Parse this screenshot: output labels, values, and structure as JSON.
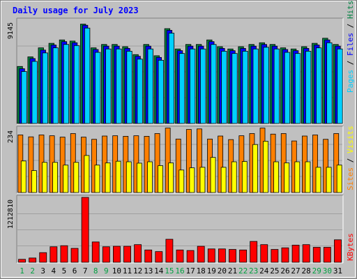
{
  "chart_data": {
    "type": "bar",
    "title": "Daily usage for July 2023",
    "categories": [
      "1",
      "2",
      "3",
      "4",
      "5",
      "6",
      "7",
      "8",
      "9",
      "10",
      "11",
      "12",
      "13",
      "14",
      "15",
      "16",
      "17",
      "18",
      "19",
      "20",
      "21",
      "22",
      "23",
      "24",
      "25",
      "26",
      "27",
      "28",
      "29",
      "30",
      "31"
    ],
    "weekend_days": [
      "1",
      "2",
      "8",
      "9",
      "15",
      "16",
      "22",
      "23",
      "29",
      "30"
    ],
    "panels": [
      {
        "id": "top",
        "max_label": "9145",
        "ylim": [
          0,
          9145
        ],
        "series": [
          {
            "name": "Hits",
            "color": "#008040",
            "values": [
              5050,
              5900,
              6700,
              7100,
              7400,
              7300,
              8800,
              6700,
              7000,
              7000,
              6800,
              6100,
              7000,
              6000,
              8400,
              6600,
              7000,
              7000,
              7400,
              6800,
              6600,
              6800,
              7000,
              7150,
              7000,
              6700,
              6600,
              6800,
              7100,
              7550,
              7000
            ]
          },
          {
            "name": "Files",
            "color": "#0000ff",
            "values": [
              4850,
              5750,
              6500,
              6950,
              7250,
              7150,
              8700,
              6550,
              6850,
              6850,
              6650,
              5950,
              6850,
              5850,
              8250,
              6450,
              6850,
              6850,
              7250,
              6650,
              6450,
              6650,
              6850,
              7000,
              6850,
              6550,
              6450,
              6650,
              6950,
              7400,
              6850
            ]
          },
          {
            "name": "Pages",
            "color": "#00d0ff",
            "values": [
              4600,
              5500,
              6250,
              6700,
              7000,
              6900,
              8450,
              6300,
              6600,
              6600,
              6400,
              5700,
              6600,
              5600,
              8000,
              6200,
              6600,
              6600,
              7000,
              6400,
              6200,
              6400,
              6600,
              6750,
              6600,
              6300,
              6200,
              6400,
              6700,
              7150,
              6600
            ]
          }
        ]
      },
      {
        "id": "middle",
        "max_label": "234",
        "ylim": [
          0,
          234
        ],
        "series": [
          {
            "name": "Visits",
            "color": "#ff8000",
            "values": [
              210,
              203,
              210,
              207,
              202,
              215,
              202,
              194,
              206,
              207,
              205,
              207,
              205,
              215,
              235,
              195,
              230,
              232,
              195,
              206,
              193,
              207,
              215,
              235,
              213,
              215,
              188,
              206,
              210,
              194,
              215
            ]
          },
          {
            "name": "Sites",
            "color": "#ffff00",
            "values": [
              115,
              80,
              110,
              110,
              100,
              110,
              135,
              100,
              108,
              114,
              112,
              107,
              112,
              98,
              108,
              82,
              90,
              92,
              128,
              92,
              112,
              113,
              175,
              187,
              112,
              108,
              112,
              112,
              92,
              92,
              100
            ]
          }
        ]
      },
      {
        "id": "bottom",
        "max_label": "1212810",
        "ylim": [
          0,
          1212810
        ],
        "series": [
          {
            "name": "KBytes",
            "color": "#ff0000",
            "values": [
              55000,
              80000,
              180000,
              290000,
              310000,
              260000,
              1212810,
              380000,
              290000,
              300000,
              300000,
              330000,
              230000,
              200000,
              430000,
              230000,
              220000,
              300000,
              250000,
              250000,
              240000,
              230000,
              390000,
              330000,
              240000,
              270000,
              320000,
              330000,
              280000,
              280000,
              420000
            ]
          }
        ]
      }
    ],
    "legend": {
      "top": [
        "Pages",
        "Files",
        "Hits"
      ],
      "middle": [
        "Sites",
        "Visits"
      ],
      "bottom": [
        "KBytes"
      ],
      "separator": "/",
      "placement": "right-vertical"
    },
    "colors": {
      "background": "#c0c0c0",
      "plot": "#c0c0c0",
      "title": "#0000ff",
      "axis_text": "#000000",
      "weekend_label": "#00a040",
      "weekday_label": "#000000"
    }
  }
}
